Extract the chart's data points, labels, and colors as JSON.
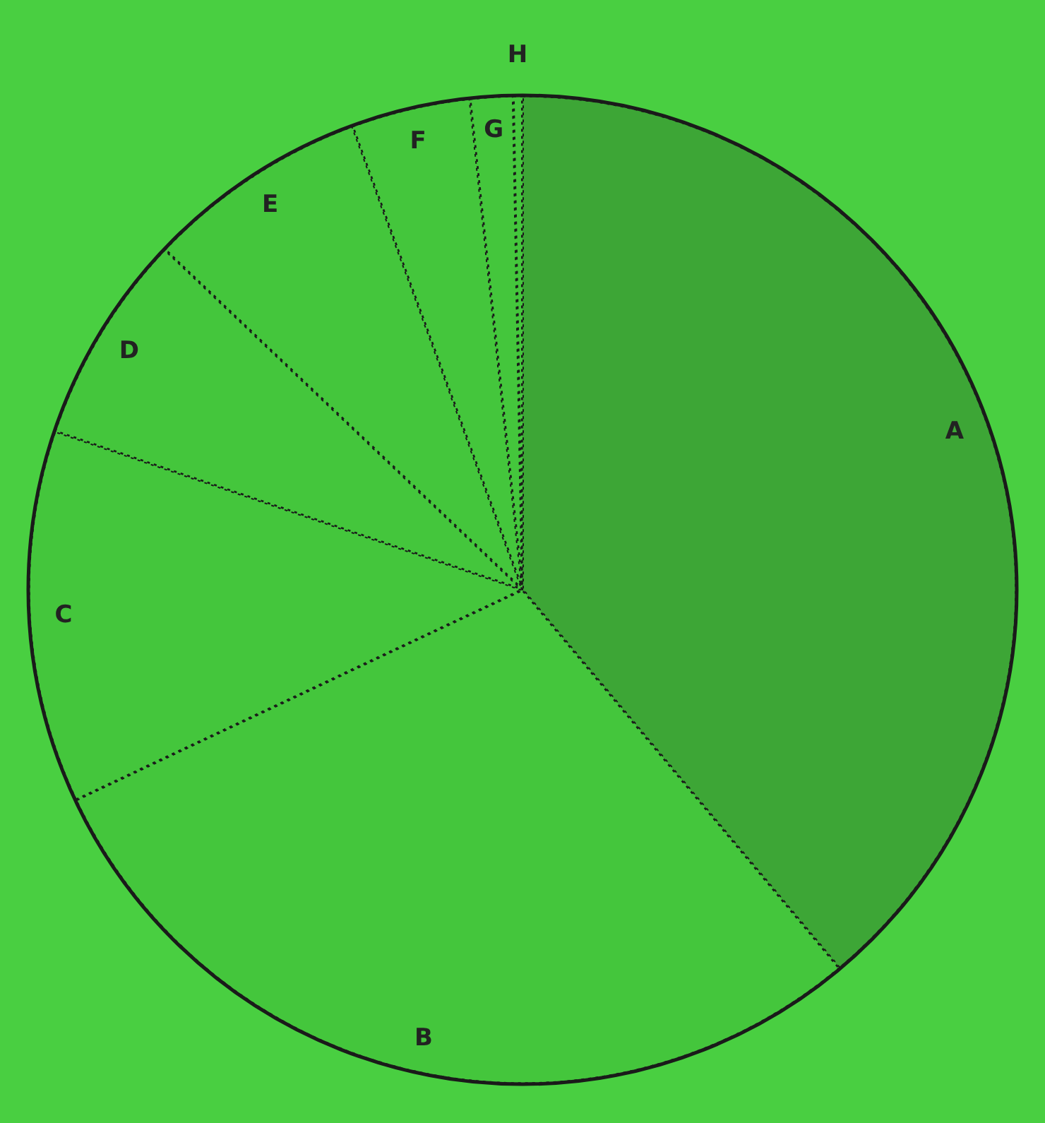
{
  "chart_data": {
    "type": "pie",
    "categories": [
      "A",
      "B",
      "C",
      "D",
      "E",
      "F",
      "G",
      "H"
    ],
    "values": [
      38.9,
      29.1,
      12.2,
      6.9,
      7.3,
      3.9,
      1.4,
      0.3
    ],
    "colors": [
      "#3da636",
      "#44c63c",
      "#44c63c",
      "#44c63c",
      "#44c63c",
      "#44c63c",
      "#44c63c",
      "#44c63c"
    ],
    "legend": false
  }
}
